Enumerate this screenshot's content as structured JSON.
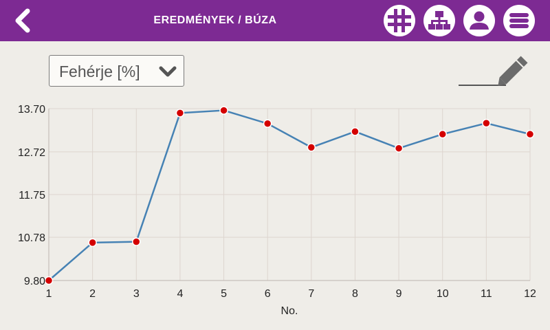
{
  "header": {
    "title": "EREDMÉNYEK / BÚZA",
    "bar_color": "#7d2a93",
    "icons": [
      "back-chevron-icon",
      "grid-icon",
      "hierarchy-icon",
      "user-icon",
      "menu-icon"
    ]
  },
  "dropdown": {
    "selected": "Fehérje [%]"
  },
  "chart_data": {
    "type": "line",
    "xlabel": "No.",
    "ylabel": "",
    "x": [
      1,
      2,
      3,
      4,
      5,
      6,
      7,
      8,
      9,
      10,
      11,
      12
    ],
    "values": [
      9.8,
      10.66,
      10.68,
      13.6,
      13.66,
      13.36,
      12.82,
      13.18,
      12.8,
      13.12,
      13.37,
      13.12
    ],
    "xlim": [
      1,
      12
    ],
    "ylim": [
      9.8,
      13.7
    ],
    "yticks": [
      9.8,
      10.78,
      11.75,
      12.72,
      13.7
    ],
    "ytick_labels": [
      "9.80",
      "10.78",
      "11.75",
      "12.72",
      "13.70"
    ],
    "xtick_labels": [
      "1",
      "2",
      "3",
      "4",
      "5",
      "6",
      "7",
      "8",
      "9",
      "10",
      "11",
      "12"
    ],
    "grid": true,
    "line_color": "#4682b4",
    "marker_color": "#d40000"
  }
}
